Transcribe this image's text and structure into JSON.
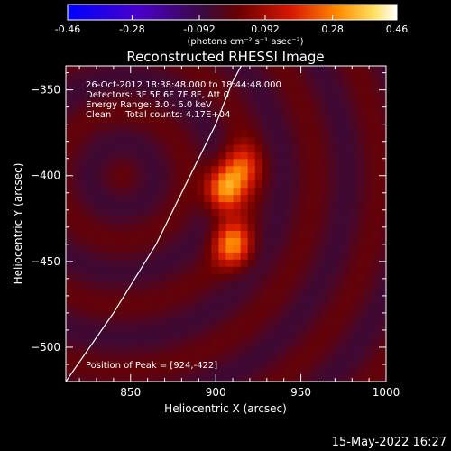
{
  "chart_data": {
    "type": "heatmap",
    "title": "Reconstructed RHESSI Image",
    "xlabel": "Heliocentric X (arcsec)",
    "ylabel": "Heliocentric Y (arcsec)",
    "xlim": [
      812,
      1000
    ],
    "ylim": [
      -520,
      -336
    ],
    "x_ticks": [
      850,
      900,
      950,
      1000
    ],
    "y_ticks": [
      -350,
      -400,
      -450,
      -500
    ],
    "colorbar": {
      "min": -0.46,
      "max": 0.46,
      "ticks": [
        "-0.46",
        "-0.28",
        "-0.092",
        "0.092",
        "0.28",
        "0.46"
      ],
      "unit_label": "(photons cm⁻² s⁻¹ asec⁻²)"
    },
    "annotations": [
      "26-Oct-2012 18:38:48.000 to 18:44:48.000",
      "Detectors: 3F 5F 6F 7F 8F, Att 0",
      "Energy Range: 3.0 - 6.0 keV",
      "Clean     Total counts: 4.17E+04"
    ],
    "peak_label": "Position of Peak = [924,-422]",
    "peak": [
      924,
      -422
    ],
    "sources": [
      {
        "x": 905,
        "y": -408,
        "intensity": 0.46
      },
      {
        "x": 910,
        "y": -440,
        "intensity": 0.4
      },
      {
        "x": 915,
        "y": -395,
        "intensity": 0.3
      }
    ],
    "limb_curve": [
      [
        812,
        -520
      ],
      [
        840,
        -480
      ],
      [
        865,
        -440
      ],
      [
        885,
        -400
      ],
      [
        900,
        -370
      ],
      [
        910,
        -345
      ],
      [
        915,
        -336
      ]
    ],
    "footer_timestamp": "15-May-2022 16:27"
  }
}
